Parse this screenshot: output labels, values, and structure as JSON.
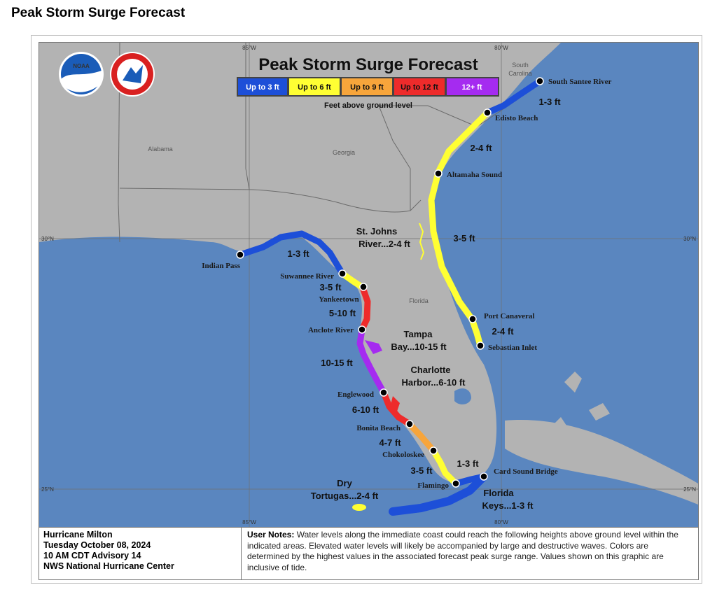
{
  "page_heading": "Peak Storm Surge Forecast",
  "map": {
    "title": "Peak Storm Surge Forecast",
    "legend": {
      "caption": "Feet above ground level",
      "items": [
        {
          "label": "Up to 3 ft",
          "color": "#1d4fd8"
        },
        {
          "label": "Up to 6 ft",
          "color": "#ffff33"
        },
        {
          "label": "Up to 9 ft",
          "color": "#f7a53b"
        },
        {
          "label": "Up to 12 ft",
          "color": "#ee2b2b"
        },
        {
          "label": "12+ ft",
          "color": "#a52bf0"
        }
      ]
    },
    "logos": {
      "noaa": "NOAA",
      "nws": "NATIONAL WEATHER SERVICE"
    },
    "states": {
      "alabama": "Alabama",
      "georgia": "Georgia",
      "south_carolina_1": "South",
      "south_carolina_2": "Carolina",
      "florida": "Florida"
    },
    "coords": {
      "top_85": "85°W",
      "top_80": "80°W",
      "bottom_85": "85°W",
      "bottom_80": "80°W",
      "left_30": "30°N",
      "right_30": "30°N",
      "left_25": "25°N",
      "right_25": "25°N"
    },
    "locations": {
      "south_santee": "South Santee River",
      "edisto": "Edisto Beach",
      "altamaha": "Altamaha Sound",
      "port_canaveral": "Port Canaveral",
      "sebastian": "Sebastian Inlet",
      "card_sound": "Card Sound Bridge",
      "flamingo": "Flamingo",
      "chokoloskee": "Chokoloskee",
      "bonita": "Bonita Beach",
      "englewood": "Englewood",
      "anclote": "Anclote River",
      "yankeetown": "Yankeetown",
      "suwannee": "Suwannee River",
      "indian_pass": "Indian Pass"
    },
    "ranges": {
      "sc_coast": "1-3 ft",
      "ga_north": "2-4 ft",
      "ne_fl": "3-5 ft",
      "st_johns_1": "St. Johns",
      "st_johns_2": "River...2-4 ft",
      "east_central": "2-4 ft",
      "se_fl": "1-3 ft",
      "big_bend": "1-3 ft",
      "suwannee_yank": "3-5 ft",
      "yank_anclote": "5-10 ft",
      "tampa_1": "Tampa",
      "tampa_2": "Bay...10-15 ft",
      "anclote_engle": "10-15 ft",
      "charlotte_1": "Charlotte",
      "charlotte_2": "Harbor...6-10 ft",
      "engle_bonita": "6-10 ft",
      "bonita_choko": "4-7 ft",
      "choko_flam": "3-5 ft",
      "dry_tort_1": "Dry",
      "dry_tort_2": "Tortugas...2-4 ft",
      "keys_1": "Florida",
      "keys_2": "Keys...1-3 ft"
    }
  },
  "storm_info": {
    "name": "Hurricane Milton",
    "date": "Tuesday October 08, 2024",
    "advisory": "10 AM CDT Advisory 14",
    "source": "NWS National Hurricane Center"
  },
  "notes": {
    "title": "User Notes:",
    "text": "Water levels along the immediate coast could reach the following heights above ground level within the indicated areas. Elevated water levels will likely be accompanied by large and destructive waves. Colors are determined by the highest values in the associated forecast peak surge range. Values shown on this graphic are inclusive of tide."
  }
}
